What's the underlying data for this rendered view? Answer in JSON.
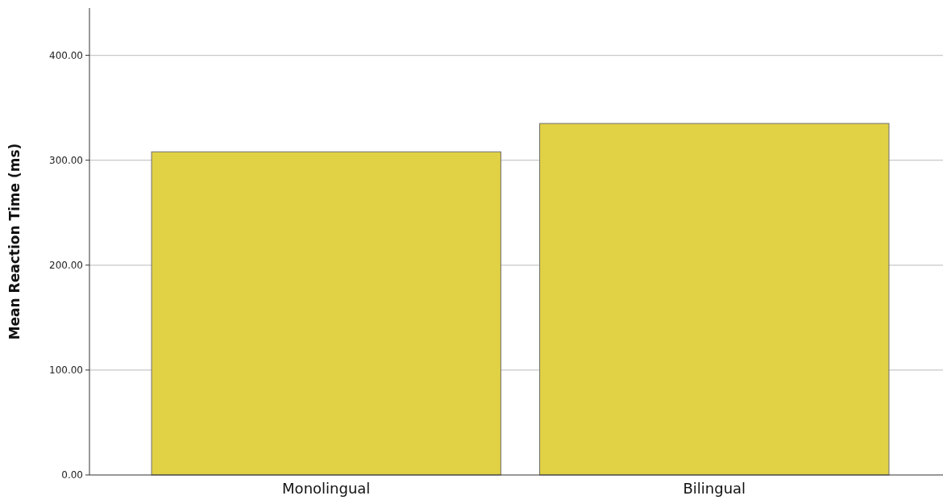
{
  "chart_data": {
    "type": "bar",
    "ylabel": "Mean Reaction Time (ms)",
    "categories": [
      "Monolingual",
      "Bilingual"
    ],
    "values": [
      308,
      335
    ],
    "color": "#e1d145",
    "ylim": [
      0,
      445
    ],
    "yticks": [
      {
        "value": 0,
        "label": "0.00"
      },
      {
        "value": 100,
        "label": "100.00"
      },
      {
        "value": 200,
        "label": "200.00"
      },
      {
        "value": 300,
        "label": "300.00"
      },
      {
        "value": 400,
        "label": "400.00"
      }
    ],
    "grid": "y"
  }
}
